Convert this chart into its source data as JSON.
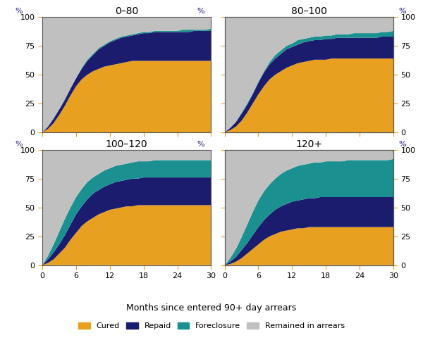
{
  "panels": [
    {
      "title": "0–80",
      "cured": [
        0,
        3,
        8,
        15,
        23,
        32,
        40,
        46,
        50,
        53,
        55,
        57,
        58,
        59,
        60,
        61,
        62,
        62,
        62,
        62,
        62,
        62,
        62,
        62,
        62,
        62,
        62,
        62,
        62,
        62,
        62
      ],
      "repaid": [
        0,
        5,
        12,
        20,
        28,
        38,
        47,
        55,
        62,
        67,
        72,
        75,
        78,
        80,
        82,
        83,
        84,
        85,
        86,
        86,
        87,
        87,
        87,
        87,
        87,
        87,
        87,
        88,
        88,
        88,
        88
      ],
      "foreclosure": [
        0,
        5,
        12,
        20,
        29,
        38,
        47,
        56,
        63,
        68,
        73,
        76,
        79,
        81,
        83,
        84,
        85,
        86,
        87,
        87,
        88,
        88,
        88,
        88,
        88,
        89,
        89,
        89,
        89,
        89,
        90
      ]
    },
    {
      "title": "80–100",
      "cured": [
        0,
        2,
        5,
        10,
        17,
        25,
        33,
        40,
        46,
        50,
        53,
        56,
        58,
        60,
        61,
        62,
        63,
        63,
        63,
        64,
        64,
        64,
        64,
        64,
        64,
        64,
        64,
        64,
        64,
        64,
        64
      ],
      "repaid": [
        0,
        4,
        9,
        16,
        24,
        33,
        43,
        52,
        59,
        64,
        68,
        72,
        74,
        76,
        78,
        79,
        80,
        80,
        81,
        81,
        82,
        82,
        82,
        82,
        82,
        82,
        82,
        82,
        83,
        83,
        83
      ],
      "foreclosure": [
        0,
        4,
        9,
        17,
        25,
        34,
        44,
        53,
        61,
        67,
        71,
        75,
        77,
        80,
        81,
        82,
        83,
        83,
        84,
        84,
        85,
        85,
        85,
        86,
        86,
        86,
        86,
        86,
        87,
        87,
        88
      ]
    },
    {
      "title": "100–120",
      "cured": [
        0,
        2,
        5,
        10,
        15,
        22,
        28,
        34,
        38,
        41,
        44,
        46,
        48,
        49,
        50,
        51,
        51,
        52,
        52,
        52,
        52,
        52,
        52,
        52,
        52,
        52,
        52,
        52,
        52,
        52,
        52
      ],
      "repaid": [
        0,
        5,
        11,
        18,
        26,
        35,
        44,
        51,
        57,
        62,
        65,
        68,
        70,
        72,
        73,
        74,
        75,
        75,
        76,
        76,
        76,
        76,
        76,
        76,
        76,
        76,
        76,
        76,
        76,
        76,
        76
      ],
      "foreclosure": [
        0,
        8,
        18,
        29,
        40,
        50,
        59,
        66,
        72,
        76,
        79,
        82,
        84,
        86,
        87,
        88,
        89,
        90,
        90,
        90,
        91,
        91,
        91,
        91,
        91,
        91,
        91,
        91,
        91,
        91,
        91
      ]
    },
    {
      "title": "120+",
      "cured": [
        0,
        1,
        3,
        6,
        10,
        14,
        18,
        22,
        25,
        27,
        29,
        30,
        31,
        32,
        32,
        33,
        33,
        33,
        33,
        33,
        33,
        33,
        33,
        33,
        33,
        33,
        33,
        33,
        33,
        33,
        33
      ],
      "repaid": [
        0,
        3,
        7,
        13,
        19,
        26,
        33,
        39,
        44,
        48,
        51,
        53,
        55,
        56,
        57,
        58,
        58,
        59,
        59,
        59,
        59,
        59,
        59,
        59,
        59,
        59,
        59,
        59,
        59,
        59,
        59
      ],
      "foreclosure": [
        0,
        6,
        14,
        24,
        35,
        46,
        56,
        64,
        70,
        75,
        79,
        82,
        84,
        86,
        87,
        88,
        89,
        89,
        90,
        90,
        90,
        90,
        91,
        91,
        91,
        91,
        91,
        91,
        91,
        91,
        92
      ]
    }
  ],
  "colors": {
    "cured": "#E8A020",
    "repaid": "#1C1C6E",
    "foreclosure": "#1A9090",
    "remained": "#C0C0C0"
  },
  "tick_color": "#E8A020",
  "axis_label_color": "#1C1C6E",
  "x_ticks": [
    0,
    6,
    12,
    18,
    24,
    30
  ],
  "y_ticks": [
    0,
    25,
    50,
    75,
    100
  ],
  "xlabel": "Months since entered 90+ day arrears",
  "legend_labels": [
    "Cured",
    "Repaid",
    "Foreclosure",
    "Remained in arrears"
  ]
}
